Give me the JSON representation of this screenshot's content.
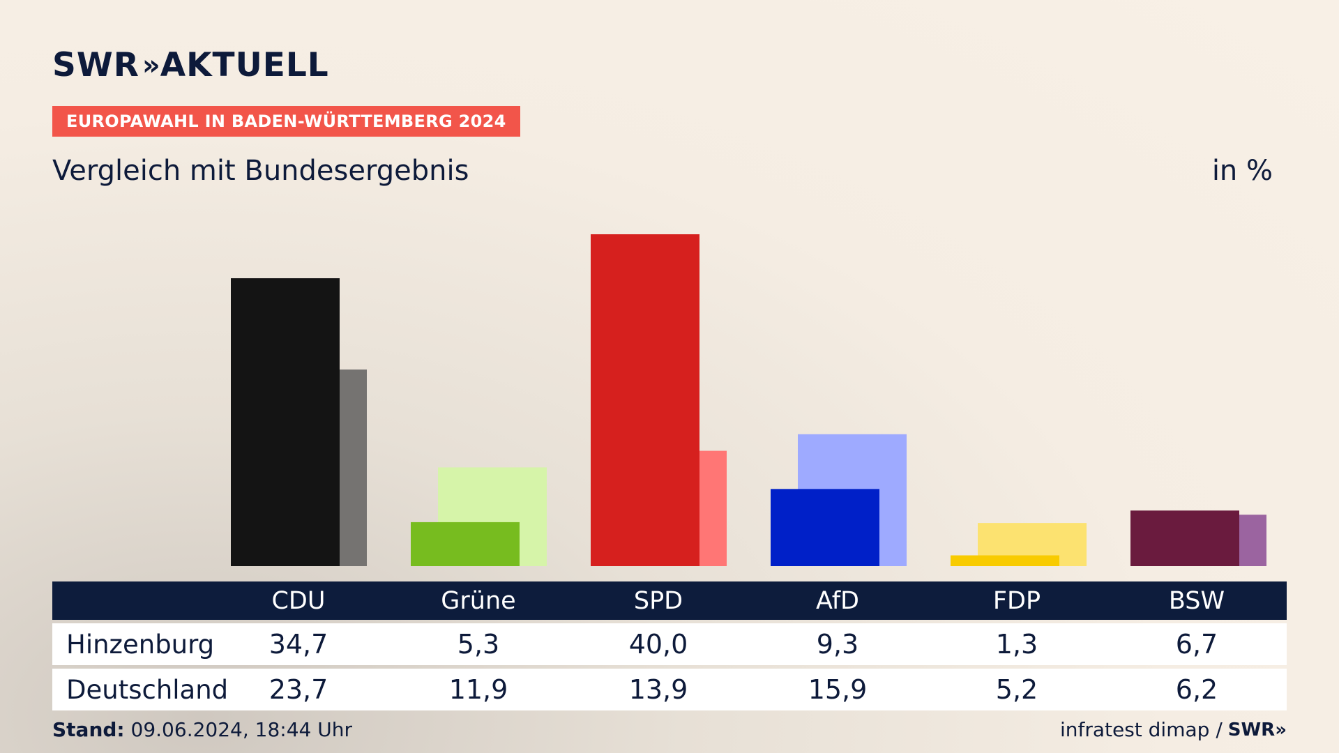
{
  "header": {
    "logo_text": "SWR",
    "logo_chevrons": "»",
    "logo_suffix": "AKTUELL",
    "kicker": "EUROPAWAHL IN BADEN-WÜRTTEMBERG 2024",
    "subtitle": "Vergleich mit Bundesergebnis",
    "unit": "in %"
  },
  "table": {
    "parties": [
      "CDU",
      "Grüne",
      "SPD",
      "AfD",
      "FDP",
      "BSW"
    ],
    "rows": [
      {
        "label": "Hinzenburg",
        "values": [
          "34,7",
          "5,3",
          "40,0",
          "9,3",
          "1,3",
          "6,7"
        ]
      },
      {
        "label": "Deutschland",
        "values": [
          "23,7",
          "11,9",
          "13,9",
          "15,9",
          "5,2",
          "6,2"
        ]
      }
    ]
  },
  "footer": {
    "stand_label": "Stand:",
    "stand_value": "09.06.2024, 18:44 Uhr",
    "source": "infratest dimap /",
    "brand": "SWR»"
  },
  "colors": {
    "navy": "#0d1c3c",
    "kicker_bg": "#f2554a",
    "CDU": [
      "#141414",
      "#757371"
    ],
    "Grüne": [
      "#77bc1f",
      "#d6f4a9"
    ],
    "SPD": [
      "#d6201e",
      "#ff7675"
    ],
    "AfD": [
      "#0020c8",
      "#9eaaff"
    ],
    "FDP": [
      "#f8cb00",
      "#fce270"
    ],
    "BSW": [
      "#6a1b3e",
      "#9b64a0"
    ]
  },
  "chart_data": {
    "type": "bar",
    "categories": [
      "CDU",
      "Grüne",
      "SPD",
      "AfD",
      "FDP",
      "BSW"
    ],
    "series": [
      {
        "name": "Hinzenburg",
        "values": [
          34.7,
          5.3,
          40.0,
          9.3,
          1.3,
          6.7
        ]
      },
      {
        "name": "Deutschland",
        "values": [
          23.7,
          11.9,
          13.9,
          15.9,
          5.2,
          6.2
        ]
      }
    ],
    "ylim": [
      0,
      40
    ],
    "grid": false,
    "legend": "none"
  }
}
